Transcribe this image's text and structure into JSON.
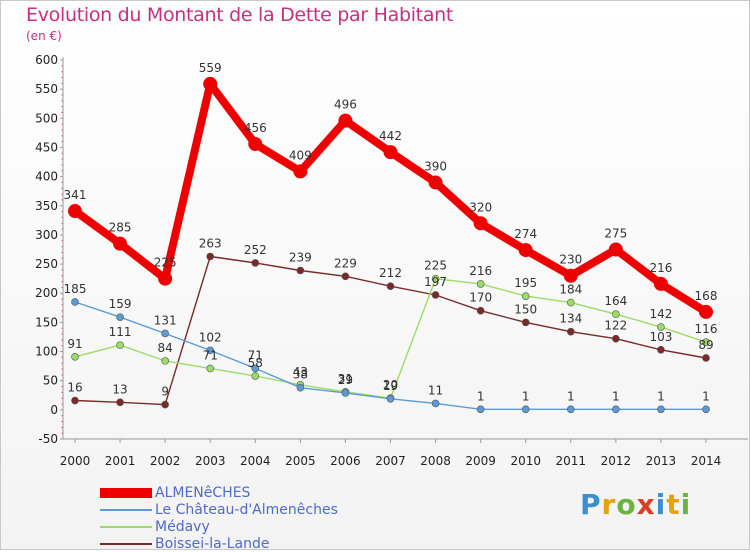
{
  "title": "Evolution du Montant de la Dette par Habitant",
  "subtitle": "(en €)",
  "logo": {
    "text": "Proxiti",
    "colors": [
      "#3a8fd4",
      "#e8a20b",
      "#6db33f",
      "#d93f26",
      "#3a8fd4",
      "#e8a20b",
      "#6db33f"
    ]
  },
  "chart_data": {
    "type": "line",
    "x": [
      "2000",
      "2001",
      "2002",
      "2003",
      "2004",
      "2005",
      "2006",
      "2007",
      "2008",
      "2009",
      "2010",
      "2011",
      "2012",
      "2013",
      "2014"
    ],
    "ylim": [
      -50,
      600
    ],
    "yticks": [
      "600",
      "550",
      "500",
      "450",
      "400",
      "350",
      "300",
      "250",
      "200",
      "150",
      "100",
      "50",
      "0",
      "-50"
    ],
    "grid": false,
    "legend_position": "bottom-left",
    "series": [
      {
        "name": "ALMENêCHES",
        "color": "#ee0000",
        "values": [
          341,
          285,
          225,
          559,
          456,
          409,
          496,
          442,
          390,
          320,
          274,
          230,
          275,
          216,
          168
        ]
      },
      {
        "name": "Le Château-d'Almenêches",
        "color": "#5b9bd5",
        "values": [
          185,
          159,
          131,
          102,
          71,
          38,
          29,
          19,
          11,
          1,
          1,
          1,
          1,
          1,
          1
        ]
      },
      {
        "name": "Médavy",
        "color": "#99dd66",
        "values": [
          91,
          111,
          84,
          71,
          58,
          43,
          31,
          20,
          225,
          216,
          195,
          184,
          164,
          142,
          116
        ]
      },
      {
        "name": "Boissei-la-Lande",
        "color": "#7a2a2a",
        "values": [
          16,
          13,
          9,
          263,
          252,
          239,
          229,
          212,
          197,
          170,
          150,
          134,
          122,
          103,
          89
        ]
      }
    ]
  }
}
